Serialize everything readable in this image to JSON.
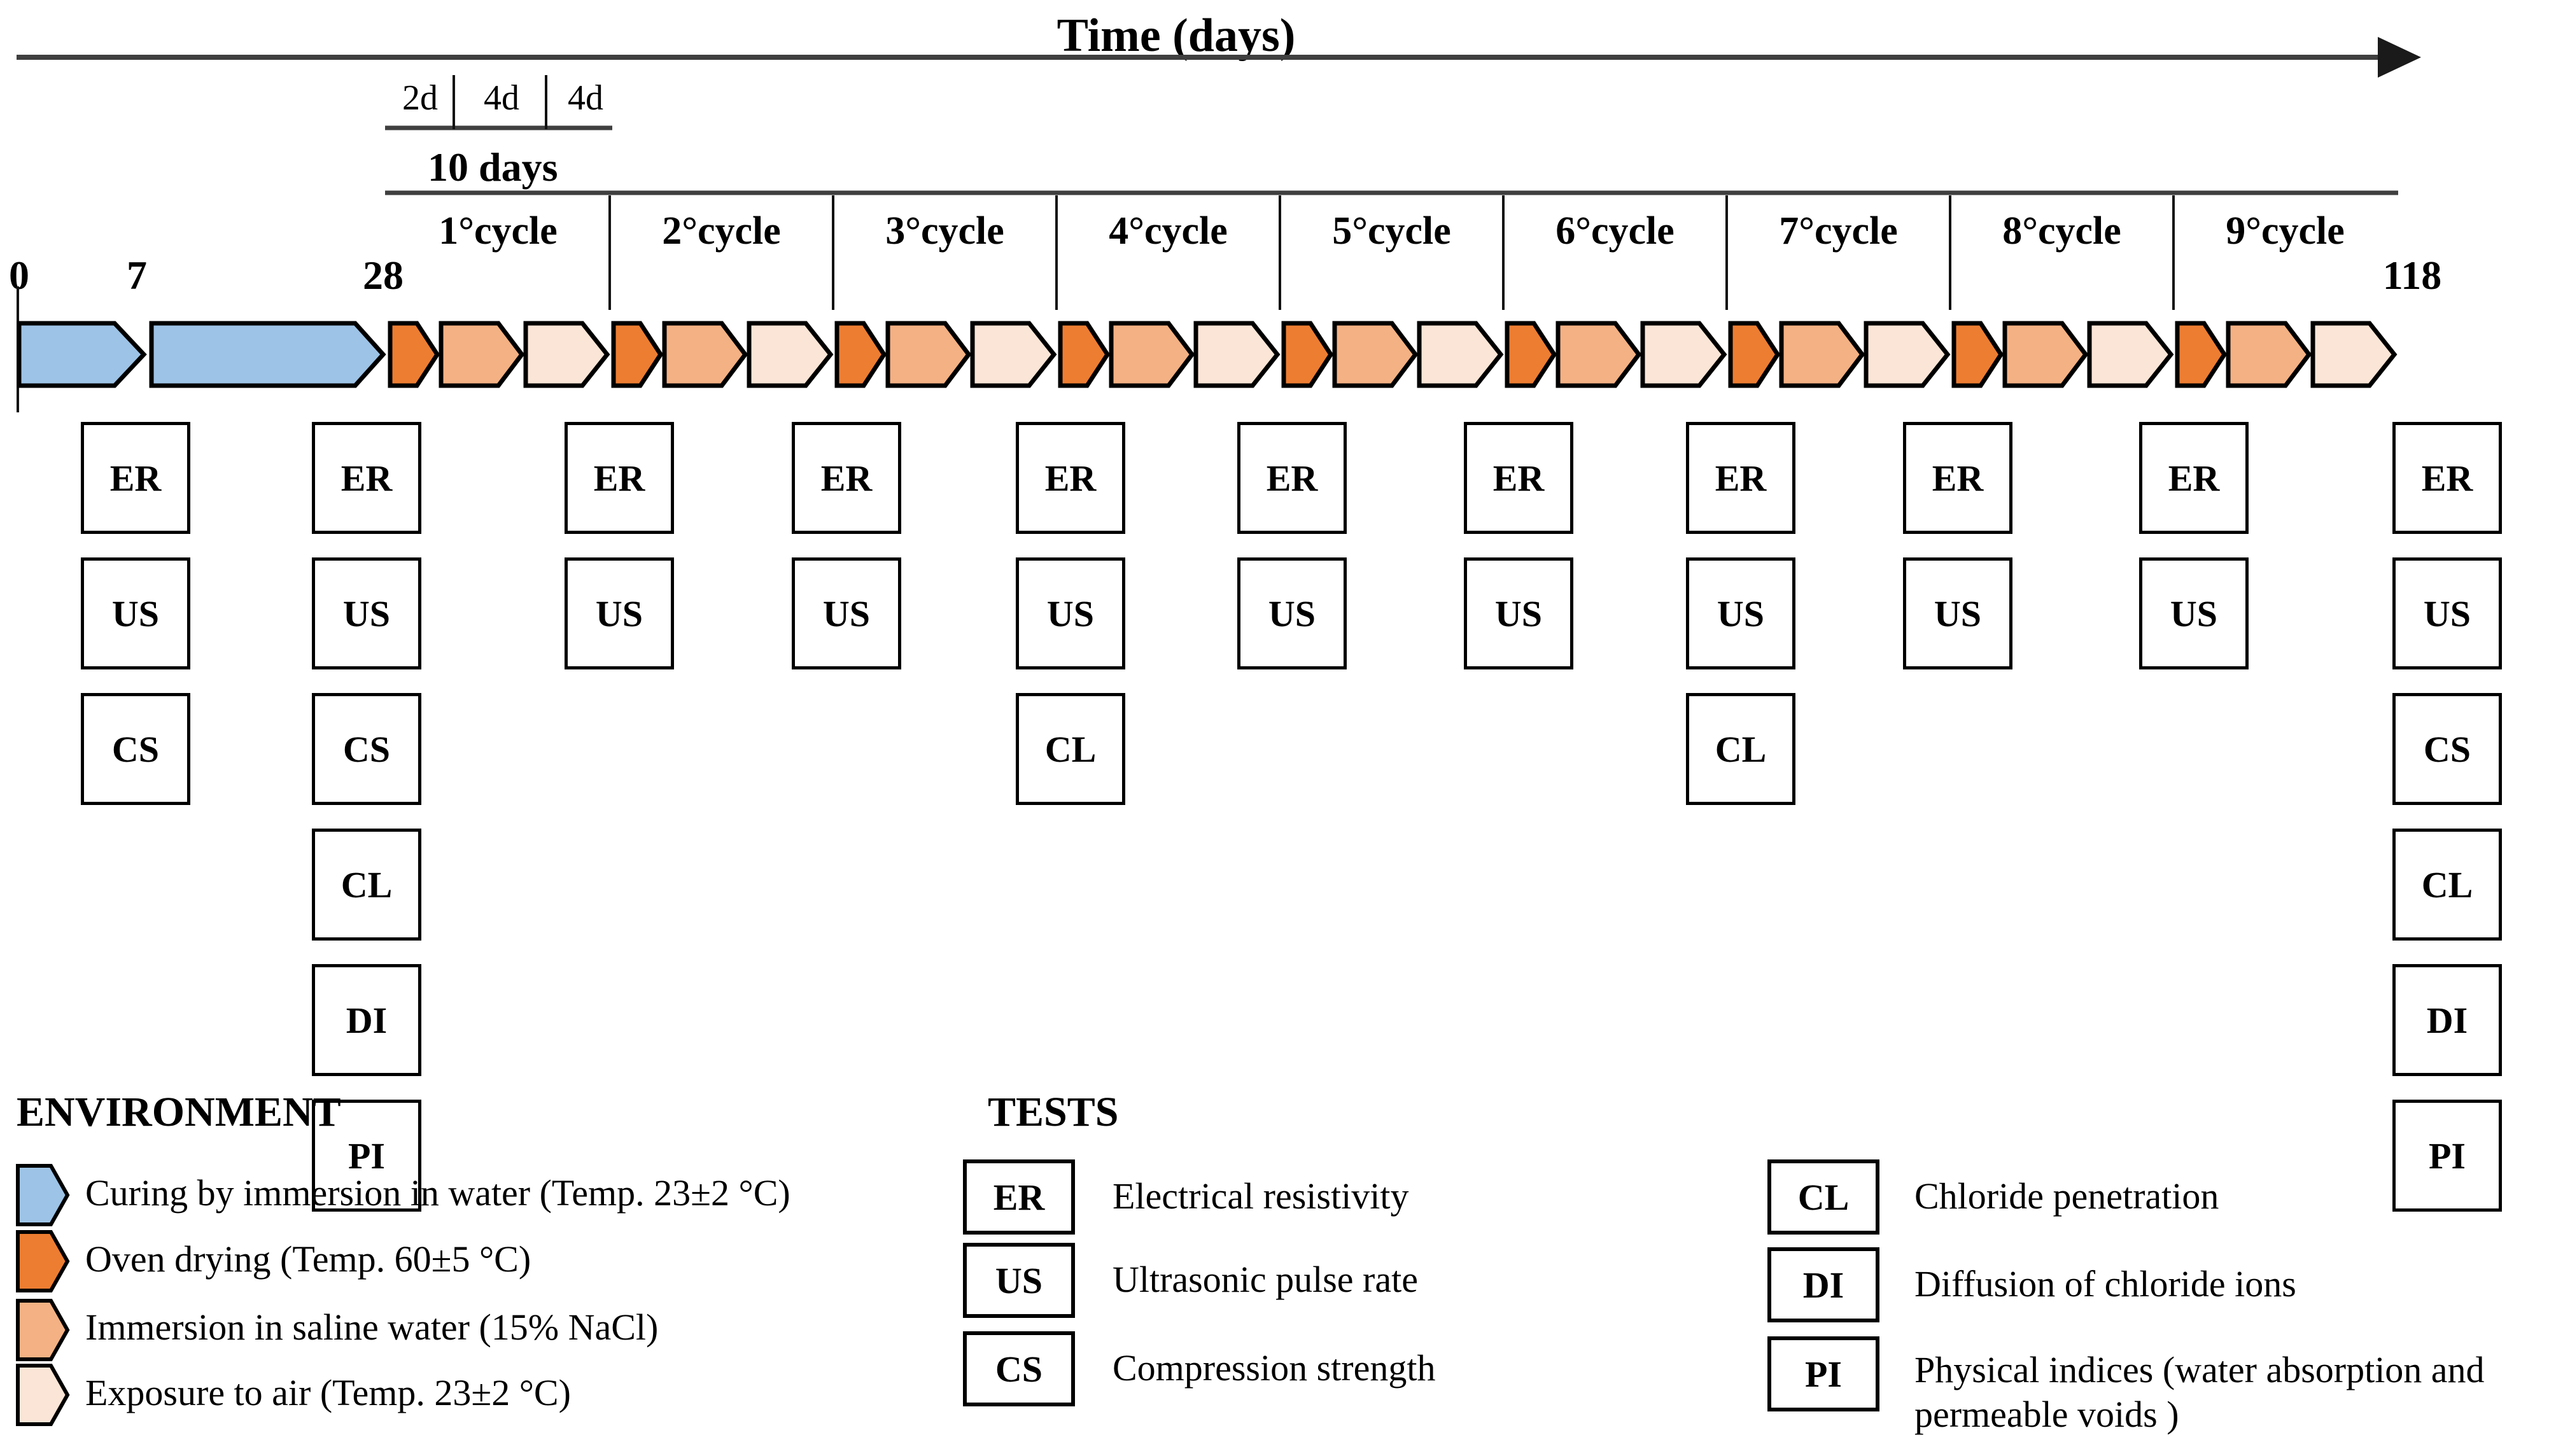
{
  "timeline": {
    "axis_title": "Time (days)",
    "mini_scale": {
      "segments": [
        "2d",
        "4d",
        "4d"
      ],
      "total_label": "10 days"
    },
    "cycles": [
      "1°cycle",
      "2°cycle",
      "3°cycle",
      "4°cycle",
      "5°cycle",
      "6°cycle",
      "7°cycle",
      "8°cycle",
      "9°cycle"
    ],
    "day_markers": [
      "0",
      "7",
      "28",
      "118"
    ],
    "phases": [
      {
        "name": "curing-water",
        "color_key": "curing_blue"
      },
      {
        "name": "oven-drying",
        "color_key": "oven_orange"
      },
      {
        "name": "saline-immersion",
        "color_key": "saline_orange"
      },
      {
        "name": "air-exposure",
        "color_key": "air_cream"
      }
    ],
    "test_columns": [
      {
        "position": "day-7",
        "tests": [
          "ER",
          "US",
          "CS"
        ]
      },
      {
        "position": "day-28",
        "tests": [
          "ER",
          "US",
          "CS",
          "CL",
          "DI",
          "PI"
        ]
      },
      {
        "position": "cycle-1-end",
        "tests": [
          "ER",
          "US"
        ]
      },
      {
        "position": "cycle-2-end",
        "tests": [
          "ER",
          "US"
        ]
      },
      {
        "position": "cycle-3-end",
        "tests": [
          "ER",
          "US",
          "CL"
        ]
      },
      {
        "position": "cycle-4-end",
        "tests": [
          "ER",
          "US"
        ]
      },
      {
        "position": "cycle-5-end",
        "tests": [
          "ER",
          "US"
        ]
      },
      {
        "position": "cycle-6-end",
        "tests": [
          "ER",
          "US",
          "CL"
        ]
      },
      {
        "position": "cycle-7-end",
        "tests": [
          "ER",
          "US"
        ]
      },
      {
        "position": "cycle-8-end",
        "tests": [
          "ER",
          "US"
        ]
      },
      {
        "position": "day-118",
        "tests": [
          "ER",
          "US",
          "CS",
          "CL",
          "DI",
          "PI"
        ]
      }
    ]
  },
  "legend": {
    "environment": {
      "title": "ENVIRONMENT",
      "items": [
        {
          "symbol": "curing_blue",
          "label": "Curing by immersion in water (Temp. 23±2 °C)"
        },
        {
          "symbol": "oven_orange",
          "label": "Oven drying (Temp. 60±5 °C)"
        },
        {
          "symbol": "saline_orange",
          "label": "Immersion in saline water (15% NaCl)"
        },
        {
          "symbol": "air_cream",
          "label": "Exposure to air (Temp. 23±2 °C)"
        }
      ]
    },
    "tests": {
      "title": "TESTS",
      "items": [
        {
          "code": "ER",
          "label": "Electrical resistivity",
          "column": "left"
        },
        {
          "code": "US",
          "label": "Ultrasonic pulse rate",
          "column": "left"
        },
        {
          "code": "CS",
          "label": "Compression strength",
          "column": "left"
        },
        {
          "code": "CL",
          "label": "Chloride penetration",
          "column": "right"
        },
        {
          "code": "DI",
          "label": "Diffusion of chloride ions",
          "column": "right"
        },
        {
          "code": "PI",
          "label": "Physical indices (water absorption and permeable voids )",
          "column": "right"
        }
      ]
    }
  },
  "colors": {
    "curing_blue": "#9DC3E6",
    "oven_orange": "#ED7D31",
    "saline_orange": "#F4B183",
    "air_cream": "#FBE5D6",
    "axis_gray": "#3F3F3F",
    "outline_black": "#000000"
  }
}
